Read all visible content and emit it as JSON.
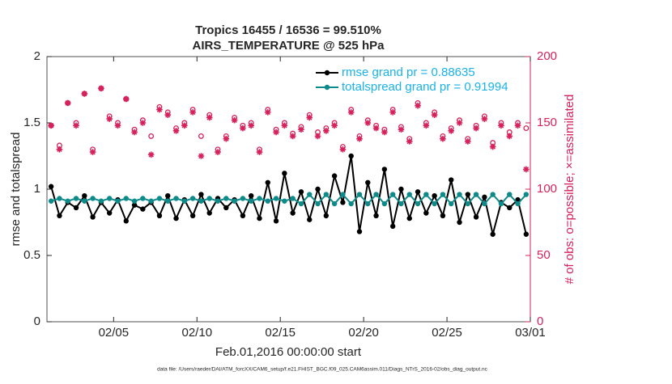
{
  "chart_data": {
    "type": "line",
    "title": "Tropics 16455 / 16536 = 99.510%",
    "subtitle": "AIRS_TEMPERATURE @ 525 hPa",
    "xlabel": "Feb.01,2016 00:00:00 start",
    "ylabel": "rmse and totalspread",
    "y2label": "# of obs: o=possible; ×=assimilated",
    "footnote": "data file: /Users/raeder/DAI/ATM_forcXX/CAM6_setup/f.e21.FHIST_BGC.f09_025.CAM6assim.011/Diags_NTrS_2016-02/obs_diag_output.nc",
    "xlim": [
      0,
      29
    ],
    "xticks": [
      {
        "value": 4,
        "label": "02/05"
      },
      {
        "value": 9,
        "label": "02/10"
      },
      {
        "value": 14,
        "label": "02/15"
      },
      {
        "value": 19,
        "label": "02/20"
      },
      {
        "value": 24,
        "label": "02/25"
      },
      {
        "value": 29,
        "label": "03/01"
      }
    ],
    "ylim": [
      0,
      2
    ],
    "yticks": [
      0,
      0.5,
      1,
      1.5,
      2
    ],
    "y2lim": [
      0,
      200
    ],
    "y2ticks": [
      0,
      50,
      100,
      150,
      200
    ],
    "y2color": "#d6215b",
    "legend": "upper right",
    "legend_text_color": "#1ab2e8",
    "x": [
      0.25,
      0.75,
      1.25,
      1.75,
      2.25,
      2.75,
      3.25,
      3.75,
      4.25,
      4.75,
      5.25,
      5.75,
      6.25,
      6.75,
      7.25,
      7.75,
      8.25,
      8.75,
      9.25,
      9.75,
      10.25,
      10.75,
      11.25,
      11.75,
      12.25,
      12.75,
      13.25,
      13.75,
      14.25,
      14.75,
      15.25,
      15.75,
      16.25,
      16.75,
      17.25,
      17.75,
      18.25,
      18.75,
      19.25,
      19.75,
      20.25,
      20.75,
      21.25,
      21.75,
      22.25,
      22.75,
      23.25,
      23.75,
      24.25,
      24.75,
      25.25,
      25.75,
      26.25,
      26.75,
      27.25,
      27.75,
      28.25,
      28.75
    ],
    "series": [
      {
        "name": "rmse grand pr = 0.88635",
        "color": "#000000",
        "marker": "dot",
        "line": true,
        "in_legend": true,
        "values": [
          1.02,
          0.8,
          0.9,
          0.86,
          0.95,
          0.79,
          0.9,
          0.82,
          0.92,
          0.76,
          0.88,
          0.85,
          0.9,
          0.8,
          0.95,
          0.78,
          0.92,
          0.8,
          0.96,
          0.82,
          0.93,
          0.86,
          0.92,
          0.8,
          0.95,
          0.78,
          1.05,
          0.76,
          1.12,
          0.82,
          0.98,
          0.77,
          1.0,
          0.8,
          1.1,
          0.9,
          1.25,
          0.68,
          1.05,
          0.8,
          1.15,
          0.72,
          1.0,
          0.78,
          0.98,
          0.82,
          0.95,
          0.8,
          1.07,
          0.75,
          0.96,
          0.79,
          0.94,
          0.66,
          0.9,
          0.86,
          0.92,
          0.66
        ]
      },
      {
        "name": "totalspread grand pr = 0.91994",
        "color": "#0f8a8a",
        "marker": "dot",
        "line": true,
        "in_legend": true,
        "values": [
          0.91,
          0.93,
          0.91,
          0.93,
          0.91,
          0.93,
          0.91,
          0.93,
          0.91,
          0.93,
          0.91,
          0.93,
          0.91,
          0.93,
          0.91,
          0.93,
          0.91,
          0.93,
          0.91,
          0.93,
          0.91,
          0.93,
          0.91,
          0.93,
          0.91,
          0.93,
          0.91,
          0.93,
          0.91,
          0.93,
          0.89,
          0.96,
          0.89,
          0.96,
          0.89,
          0.96,
          0.89,
          0.96,
          0.89,
          0.96,
          0.89,
          0.96,
          0.89,
          0.96,
          0.89,
          0.96,
          0.89,
          0.96,
          0.89,
          0.96,
          0.89,
          0.96,
          0.89,
          0.96,
          0.89,
          0.96,
          0.89,
          0.96
        ]
      },
      {
        "color": "#d6215b",
        "marker": "ring",
        "line": false,
        "axis": "y2",
        "values": [
          148,
          133,
          165,
          150,
          172,
          130,
          176,
          155,
          150,
          168,
          145,
          152,
          140,
          162,
          158,
          146,
          150,
          160,
          140,
          156,
          130,
          140,
          154,
          148,
          150,
          130,
          160,
          145,
          150,
          142,
          147,
          156,
          143,
          146,
          150,
          132,
          160,
          140,
          152,
          148,
          145,
          160,
          147,
          138,
          165,
          150,
          158,
          140,
          146,
          152,
          138,
          148,
          155,
          135,
          150,
          143,
          150,
          146
        ]
      },
      {
        "color": "#d6215b",
        "marker": "star",
        "line": false,
        "axis": "y2",
        "values": [
          148,
          130,
          165,
          148,
          172,
          128,
          176,
          153,
          148,
          168,
          143,
          150,
          126,
          160,
          156,
          144,
          148,
          158,
          125,
          154,
          128,
          138,
          152,
          146,
          148,
          128,
          158,
          143,
          148,
          140,
          145,
          154,
          140,
          144,
          148,
          130,
          158,
          138,
          150,
          146,
          143,
          158,
          145,
          136,
          163,
          148,
          156,
          138,
          144,
          150,
          136,
          146,
          153,
          132,
          148,
          140,
          148,
          115
        ]
      }
    ]
  }
}
